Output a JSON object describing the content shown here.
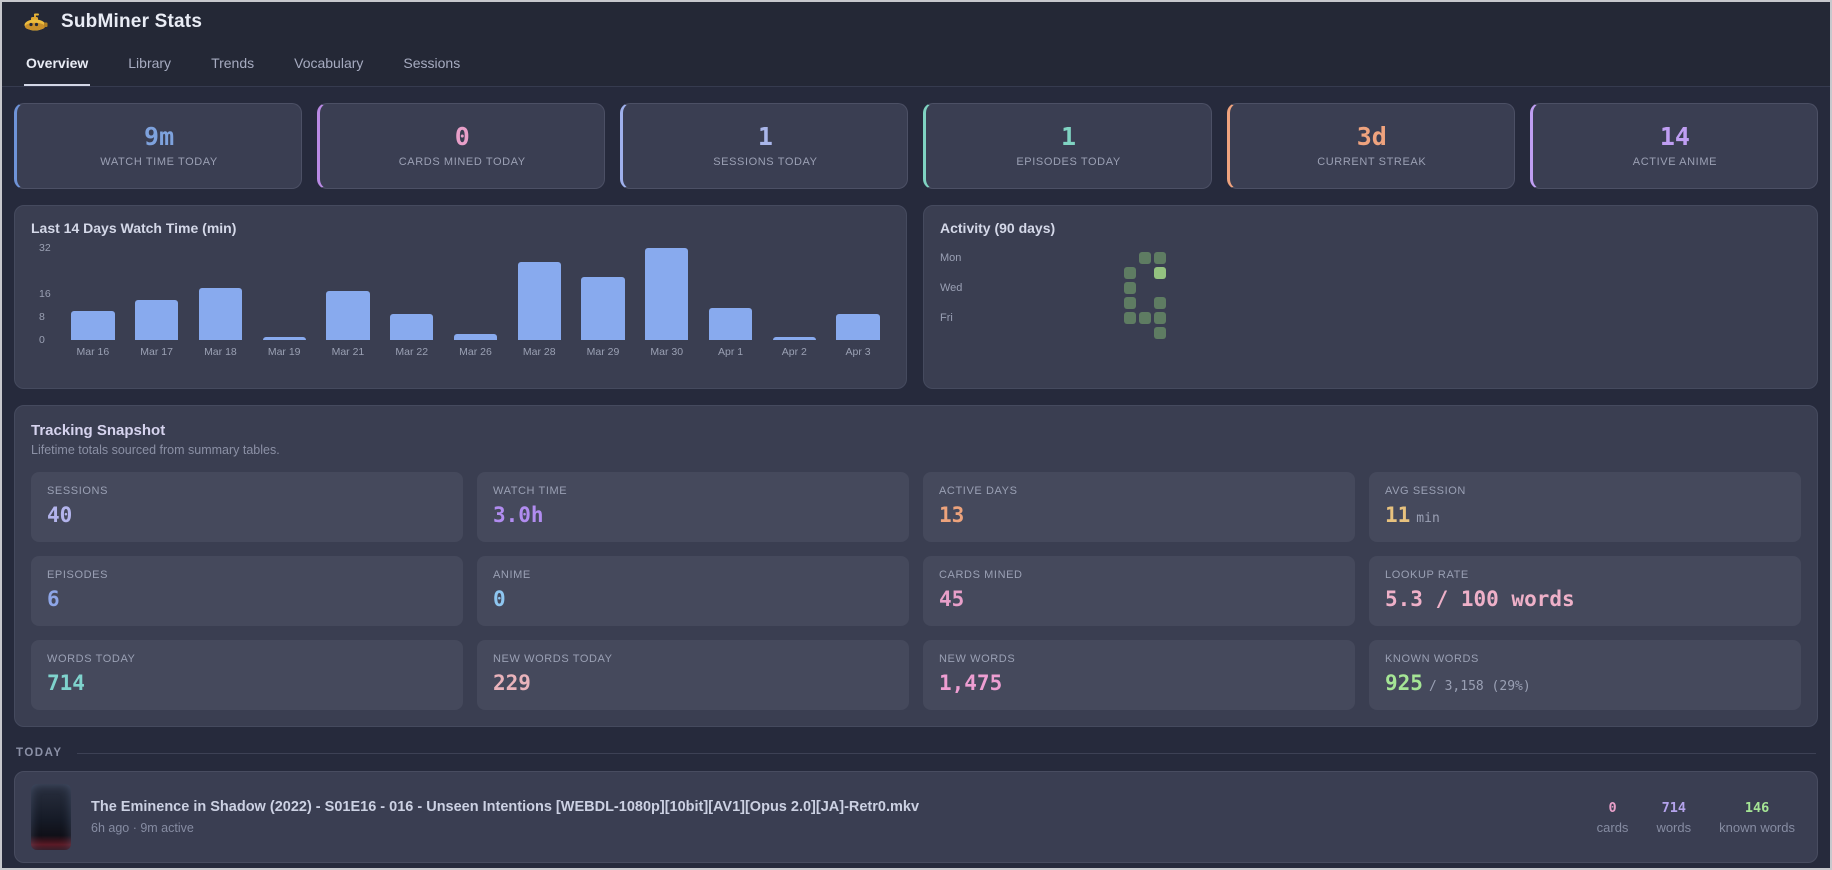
{
  "window": {
    "title": "SubMiner Stats"
  },
  "tabs": [
    {
      "label": "Overview",
      "active": true
    },
    {
      "label": "Library",
      "active": false
    },
    {
      "label": "Trends",
      "active": false
    },
    {
      "label": "Vocabulary",
      "active": false
    },
    {
      "label": "Sessions",
      "active": false
    }
  ],
  "stat_cards": [
    {
      "value": "9m",
      "label": "WATCH TIME TODAY",
      "color": "#7ea2dd",
      "border": "#6f93d8"
    },
    {
      "value": "0",
      "label": "CARDS MINED TODAY",
      "color": "#e89fc9",
      "border": "#b98ae4"
    },
    {
      "value": "1",
      "label": "SESSIONS TODAY",
      "color": "#a9b6ea",
      "border": "#9fb0ec"
    },
    {
      "value": "1",
      "label": "EPISODES TODAY",
      "color": "#7fd3c2",
      "border": "#7fd3c2"
    },
    {
      "value": "3d",
      "label": "CURRENT STREAK",
      "color": "#efa37e",
      "border": "#efa37e"
    },
    {
      "value": "14",
      "label": "ACTIVE ANIME",
      "color": "#bf9ef2",
      "border": "#bf9ef2"
    }
  ],
  "chart_data": {
    "type": "bar",
    "title": "Last 14 Days Watch Time (min)",
    "categories": [
      "Mar 16",
      "Mar 17",
      "Mar 18",
      "Mar 19",
      "Mar 21",
      "Mar 22",
      "Mar 26",
      "Mar 28",
      "Mar 29",
      "Mar 30",
      "Apr 1",
      "Apr 2",
      "Apr 3"
    ],
    "values": [
      10,
      14,
      18,
      1,
      17,
      9,
      2,
      27,
      22,
      32,
      11,
      1,
      9
    ],
    "xlabel": "",
    "ylabel": "",
    "ylim": [
      0,
      32
    ],
    "yticks": [
      0,
      8,
      16,
      32
    ],
    "grid": false,
    "bar_color": "#88aaee"
  },
  "activity": {
    "title": "Activity (90 days)",
    "rows": 7,
    "cols": 13,
    "day_labels": [
      {
        "row": 0,
        "text": "Mon"
      },
      {
        "row": 2,
        "text": "Wed"
      },
      {
        "row": 4,
        "text": "Fri"
      }
    ],
    "cells": [
      {
        "row": 0,
        "col": 11,
        "level": 1
      },
      {
        "row": 0,
        "col": 12,
        "level": 1
      },
      {
        "row": 1,
        "col": 10,
        "level": 1
      },
      {
        "row": 1,
        "col": 12,
        "level": 2
      },
      {
        "row": 2,
        "col": 10,
        "level": 1
      },
      {
        "row": 3,
        "col": 10,
        "level": 1
      },
      {
        "row": 3,
        "col": 12,
        "level": 1
      },
      {
        "row": 4,
        "col": 10,
        "level": 1
      },
      {
        "row": 4,
        "col": 11,
        "level": 1
      },
      {
        "row": 4,
        "col": 12,
        "level": 1
      },
      {
        "row": 5,
        "col": 12,
        "level": 1
      }
    ],
    "level_colors": {
      "0": "transparent",
      "1": "#5e7c62",
      "2": "#94c280"
    }
  },
  "snapshot": {
    "title": "Tracking Snapshot",
    "subtitle": "Lifetime totals sourced from summary tables.",
    "tiles": [
      {
        "label": "SESSIONS",
        "value": "40",
        "suffix": "",
        "color": "#b3b4ec"
      },
      {
        "label": "WATCH TIME",
        "value": "3.0h",
        "suffix": "",
        "color": "#b18cf0"
      },
      {
        "label": "ACTIVE DAYS",
        "value": "13",
        "suffix": "",
        "color": "#eda37c"
      },
      {
        "label": "AVG SESSION",
        "value": "11",
        "suffix": "min",
        "color": "#e8c27e"
      },
      {
        "label": "EPISODES",
        "value": "6",
        "suffix": "",
        "color": "#8ea6e8"
      },
      {
        "label": "ANIME",
        "value": "0",
        "suffix": "",
        "color": "#8ec6f0"
      },
      {
        "label": "CARDS MINED",
        "value": "45",
        "suffix": "",
        "color": "#e89fc9"
      },
      {
        "label": "LOOKUP RATE",
        "value": "5.3 / 100 words",
        "suffix": "",
        "color": "#eeb0c8"
      },
      {
        "label": "WORDS TODAY",
        "value": "714",
        "suffix": "",
        "color": "#7fd3cd"
      },
      {
        "label": "NEW WORDS TODAY",
        "value": "229",
        "suffix": "",
        "color": "#e9b3bb"
      },
      {
        "label": "NEW WORDS",
        "value": "1,475",
        "suffix": "",
        "color": "#ee9ed2"
      },
      {
        "label": "KNOWN WORDS",
        "value": "925",
        "suffix": "/ 3,158 (29%)",
        "color": "#a5e595"
      }
    ]
  },
  "today": {
    "heading": "TODAY",
    "items": [
      {
        "title": "The Eminence in Shadow (2022) - S01E16 - 016 - Unseen Intentions [WEBDL-1080p][10bit][AV1][Opus 2.0][JA]-Retr0.mkv",
        "meta": "6h ago · 9m active",
        "stats": [
          {
            "value": "0",
            "label": "cards",
            "color": "#e89fc9"
          },
          {
            "value": "714",
            "label": "words",
            "color": "#b4a3ec"
          },
          {
            "value": "146",
            "label": "known words",
            "color": "#a5e595"
          }
        ]
      }
    ]
  }
}
